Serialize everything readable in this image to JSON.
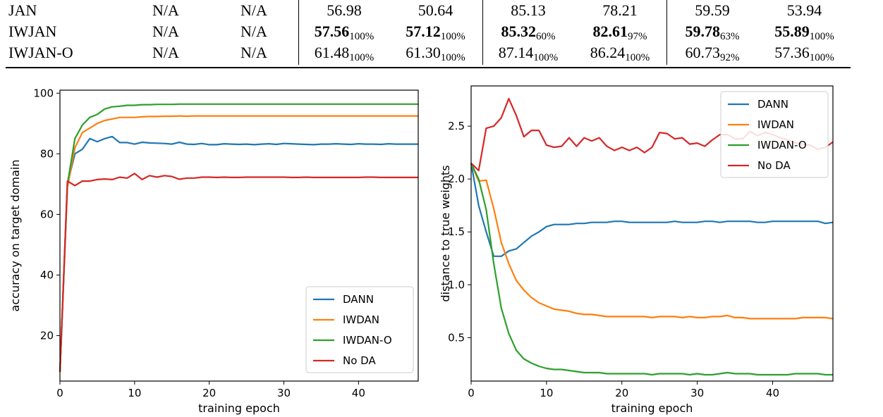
{
  "table": {
    "rows": [
      {
        "name": "JAN",
        "cells": [
          {
            "v": "N/A",
            "s": "",
            "b": false
          },
          {
            "v": "N/A",
            "s": "",
            "b": false
          },
          {
            "v": "56.98",
            "s": "",
            "b": false
          },
          {
            "v": "50.64",
            "s": "",
            "b": false
          },
          {
            "v": "85.13",
            "s": "",
            "b": false
          },
          {
            "v": "78.21",
            "s": "",
            "b": false
          },
          {
            "v": "59.59",
            "s": "",
            "b": false
          },
          {
            "v": "53.94",
            "s": "",
            "b": false
          }
        ]
      },
      {
        "name": "IWJAN",
        "cells": [
          {
            "v": "N/A",
            "s": "",
            "b": false
          },
          {
            "v": "N/A",
            "s": "",
            "b": false
          },
          {
            "v": "57.56",
            "s": "100%",
            "b": true
          },
          {
            "v": "57.12",
            "s": "100%",
            "b": true
          },
          {
            "v": "85.32",
            "s": "60%",
            "b": true
          },
          {
            "v": "82.61",
            "s": "97%",
            "b": true
          },
          {
            "v": "59.78",
            "s": "63%",
            "b": true
          },
          {
            "v": "55.89",
            "s": "100%",
            "b": true
          }
        ]
      },
      {
        "name": "IWJAN-O",
        "cells": [
          {
            "v": "N/A",
            "s": "",
            "b": false
          },
          {
            "v": "N/A",
            "s": "",
            "b": false
          },
          {
            "v": "61.48",
            "s": "100%",
            "b": false
          },
          {
            "v": "61.30",
            "s": "100%",
            "b": false
          },
          {
            "v": "87.14",
            "s": "100%",
            "b": false
          },
          {
            "v": "86.24",
            "s": "100%",
            "b": false
          },
          {
            "v": "60.73",
            "s": "92%",
            "b": false
          },
          {
            "v": "57.36",
            "s": "100%",
            "b": false
          }
        ]
      }
    ]
  },
  "colors": {
    "DANN": "#1f77b4",
    "IWDAN": "#ff7f0e",
    "IWDAN-O": "#2ca02c",
    "No DA": "#d62728"
  },
  "chart_data": [
    {
      "type": "line",
      "xlabel": "training epoch",
      "ylabel": "accuracy on target domain",
      "xlim": [
        0,
        48
      ],
      "ylim": [
        5,
        101
      ],
      "xticks": [
        0,
        10,
        20,
        30,
        40
      ],
      "yticks": [
        20,
        40,
        60,
        80,
        100
      ],
      "legend_position": "lower-right",
      "x": [
        0,
        1,
        2,
        3,
        4,
        5,
        6,
        7,
        8,
        9,
        10,
        11,
        12,
        13,
        14,
        15,
        16,
        17,
        18,
        19,
        20,
        21,
        22,
        23,
        24,
        25,
        26,
        27,
        28,
        29,
        30,
        31,
        32,
        33,
        34,
        35,
        36,
        37,
        38,
        39,
        40,
        41,
        42,
        43,
        44,
        45,
        46,
        47,
        48
      ],
      "series": [
        {
          "name": "DANN",
          "values": [
            8,
            70,
            80,
            81.5,
            85,
            84,
            85,
            85.7,
            83.7,
            83.7,
            83.2,
            83.8,
            83.6,
            83.5,
            83.4,
            83.2,
            83.8,
            83.2,
            83.1,
            83.4,
            83,
            83,
            83.3,
            83.2,
            83.1,
            83.2,
            83,
            83.2,
            83.3,
            83.1,
            83.4,
            83.3,
            83.2,
            83.1,
            83,
            83.2,
            83.2,
            83.3,
            83.2,
            83.1,
            83.3,
            83.2,
            83.2,
            83.1,
            83.3,
            83.2,
            83.2,
            83.2,
            83.2
          ]
        },
        {
          "name": "IWDAN",
          "values": [
            8,
            69,
            82,
            87,
            88.5,
            90,
            91,
            91.5,
            92,
            92,
            92,
            92.2,
            92.3,
            92.3,
            92.4,
            92.4,
            92.5,
            92.4,
            92.5,
            92.5,
            92.5,
            92.5,
            92.5,
            92.5,
            92.5,
            92.5,
            92.5,
            92.5,
            92.5,
            92.5,
            92.5,
            92.5,
            92.5,
            92.5,
            92.5,
            92.5,
            92.5,
            92.5,
            92.5,
            92.5,
            92.5,
            92.5,
            92.5,
            92.5,
            92.5,
            92.5,
            92.5,
            92.5,
            92.5
          ]
        },
        {
          "name": "IWDAN-O",
          "values": [
            8,
            70,
            85,
            89.5,
            92,
            93,
            94.8,
            95.5,
            95.7,
            96,
            96,
            96.2,
            96.2,
            96.3,
            96.3,
            96.3,
            96.4,
            96.4,
            96.4,
            96.4,
            96.4,
            96.4,
            96.4,
            96.4,
            96.4,
            96.4,
            96.4,
            96.4,
            96.4,
            96.4,
            96.4,
            96.4,
            96.4,
            96.4,
            96.4,
            96.4,
            96.4,
            96.4,
            96.4,
            96.4,
            96.4,
            96.4,
            96.4,
            96.4,
            96.4,
            96.4,
            96.4,
            96.4,
            96.4
          ]
        },
        {
          "name": "No DA",
          "values": [
            8,
            71,
            69.5,
            71,
            71,
            71.5,
            71.7,
            71.5,
            72.3,
            72,
            73.5,
            71.5,
            72.8,
            72.3,
            72.8,
            72.5,
            71.6,
            72,
            72,
            72.3,
            72.3,
            72.2,
            72.3,
            72.2,
            72.2,
            72.3,
            72.3,
            72.3,
            72.3,
            72.3,
            72.3,
            72.2,
            72.2,
            72.3,
            72.2,
            72.2,
            72.2,
            72.2,
            72.2,
            72.2,
            72.2,
            72.3,
            72.3,
            72.2,
            72.2,
            72.2,
            72.2,
            72.2,
            72.2
          ]
        }
      ]
    },
    {
      "type": "line",
      "xlabel": "training epoch",
      "ylabel": "distance to true weights",
      "xlim": [
        0,
        48
      ],
      "ylim": [
        0.09,
        2.88
      ],
      "xticks": [
        0,
        10,
        20,
        30,
        40
      ],
      "yticks": [
        0.5,
        1.0,
        1.5,
        2.0,
        2.5
      ],
      "legend_position": "top-right",
      "x": [
        0,
        1,
        2,
        3,
        4,
        5,
        6,
        7,
        8,
        9,
        10,
        11,
        12,
        13,
        14,
        15,
        16,
        17,
        18,
        19,
        20,
        21,
        22,
        23,
        24,
        25,
        26,
        27,
        28,
        29,
        30,
        31,
        32,
        33,
        34,
        35,
        36,
        37,
        38,
        39,
        40,
        41,
        42,
        43,
        44,
        45,
        46,
        47,
        48
      ],
      "series": [
        {
          "name": "DANN",
          "values": [
            2.15,
            1.75,
            1.5,
            1.27,
            1.27,
            1.32,
            1.34,
            1.4,
            1.46,
            1.5,
            1.55,
            1.57,
            1.57,
            1.57,
            1.58,
            1.58,
            1.59,
            1.59,
            1.59,
            1.6,
            1.6,
            1.59,
            1.59,
            1.59,
            1.59,
            1.59,
            1.59,
            1.6,
            1.59,
            1.59,
            1.59,
            1.6,
            1.6,
            1.59,
            1.6,
            1.6,
            1.6,
            1.6,
            1.59,
            1.59,
            1.6,
            1.6,
            1.6,
            1.6,
            1.6,
            1.6,
            1.6,
            1.58,
            1.59
          ]
        },
        {
          "name": "IWDAN",
          "values": [
            2.15,
            1.98,
            1.99,
            1.72,
            1.4,
            1.2,
            1.04,
            0.95,
            0.88,
            0.83,
            0.8,
            0.77,
            0.76,
            0.75,
            0.73,
            0.72,
            0.72,
            0.71,
            0.7,
            0.7,
            0.7,
            0.7,
            0.7,
            0.7,
            0.69,
            0.7,
            0.7,
            0.7,
            0.69,
            0.7,
            0.69,
            0.69,
            0.7,
            0.7,
            0.71,
            0.69,
            0.69,
            0.68,
            0.68,
            0.68,
            0.68,
            0.68,
            0.68,
            0.68,
            0.69,
            0.69,
            0.69,
            0.69,
            0.68
          ]
        },
        {
          "name": "IWDAN-O",
          "values": [
            2.15,
            2,
            1.71,
            1.2,
            0.78,
            0.54,
            0.38,
            0.3,
            0.26,
            0.23,
            0.21,
            0.2,
            0.2,
            0.19,
            0.18,
            0.17,
            0.17,
            0.17,
            0.16,
            0.16,
            0.16,
            0.16,
            0.16,
            0.16,
            0.15,
            0.16,
            0.16,
            0.16,
            0.16,
            0.15,
            0.16,
            0.15,
            0.15,
            0.16,
            0.17,
            0.16,
            0.16,
            0.16,
            0.15,
            0.15,
            0.15,
            0.15,
            0.15,
            0.16,
            0.16,
            0.16,
            0.16,
            0.15,
            0.15
          ]
        },
        {
          "name": "No DA",
          "values": [
            2.15,
            2.08,
            2.48,
            2.5,
            2.58,
            2.76,
            2.6,
            2.4,
            2.46,
            2.46,
            2.32,
            2.3,
            2.31,
            2.39,
            2.31,
            2.39,
            2.36,
            2.39,
            2.31,
            2.27,
            2.3,
            2.27,
            2.3,
            2.25,
            2.3,
            2.44,
            2.43,
            2.38,
            2.39,
            2.33,
            2.34,
            2.31,
            2.37,
            2.42,
            2.42,
            2.38,
            2.38,
            2.45,
            2.41,
            2.44,
            2.42,
            2.39,
            2.37,
            2.34,
            2.33,
            2.32,
            2.28,
            2.3,
            2.35
          ]
        }
      ]
    }
  ]
}
